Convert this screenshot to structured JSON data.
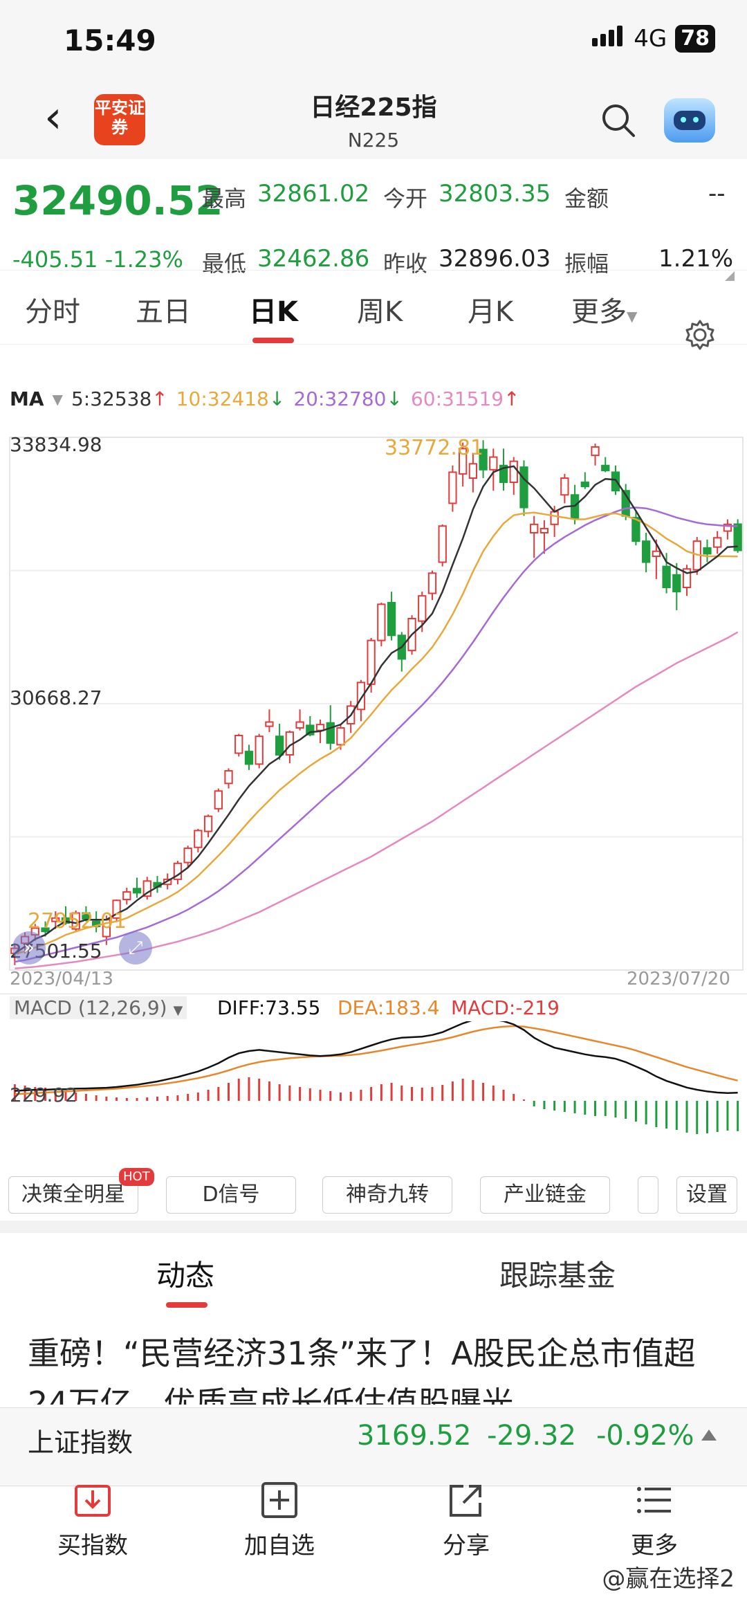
{
  "status_bar": {
    "time": "15:49",
    "network": "4G",
    "battery": "78"
  },
  "header": {
    "title": "日经225指",
    "subtitle": "N225",
    "logo_text": "平安证券"
  },
  "quote": {
    "price": "32490.52",
    "change": "-405.51",
    "change_pct": "-1.23%",
    "high_label": "最高",
    "high": "32861.02",
    "open_label": "今开",
    "open": "32803.35",
    "amount_label": "金额",
    "amount": "--",
    "low_label": "最低",
    "low": "32462.86",
    "prev_close_label": "昨收",
    "prev_close": "32896.03",
    "amplitude_label": "振幅",
    "amplitude": "1.21%"
  },
  "period_tabs": [
    "分时",
    "五日",
    "日K",
    "周K",
    "月K",
    "更多"
  ],
  "active_tab": "日K",
  "ma_legend": {
    "label": "MA",
    "ma5": "5:32538",
    "ma10": "10:32418",
    "ma20": "20:32780",
    "ma60": "60:31519",
    "ma5_dir": "↑",
    "ma10_dir": "↓",
    "ma20_dir": "↓",
    "ma60_dir": "↑"
  },
  "colors": {
    "up": "#e33b3b",
    "down": "#1f9e3f",
    "ma5": "#333333",
    "ma10": "#e8a93a",
    "ma20": "#a66ad6",
    "ma60": "#e58ac0",
    "dea": "#e8872a"
  },
  "chart_labels": {
    "y_top": "33834.98",
    "y_mid": "30668.27",
    "y_bottom": "27501.55",
    "max_marker": "33772.81",
    "min_marker": "27952.01",
    "date_start": "2023/04/13",
    "date_end": "2023/07/20"
  },
  "macd": {
    "label": "MACD (12,26,9)",
    "diff": "DIFF:73.55",
    "dea": "DEA:183.4",
    "macd": "MACD:-219",
    "y_label": "229.92"
  },
  "tool_buttons": [
    "决策全明星",
    "D信号",
    "神奇九转",
    "产业链金",
    "",
    "设置"
  ],
  "hot_badge": "HOT",
  "section_tabs": [
    "动态",
    "跟踪基金"
  ],
  "news_headline": "重磅！“民营经济31条”来了！A股民企总市值超24万亿，优质高成长低估值股曝光",
  "ticker": {
    "name": "上证指数",
    "price": "3169.52",
    "change": "-29.32",
    "change_pct": "-0.92%"
  },
  "bottom_nav": [
    {
      "label": "买指数",
      "icon": "download-icon"
    },
    {
      "label": "加自选",
      "icon": "add-icon"
    },
    {
      "label": "分享",
      "icon": "share-icon"
    },
    {
      "label": "更多",
      "icon": "menu-icon"
    }
  ],
  "watermark": "@赢在选择2",
  "chart_data": {
    "type": "candlestick",
    "x_range": [
      "2023/04/13",
      "2023/07/20"
    ],
    "ylim": [
      27501.55,
      33834.98
    ],
    "candles": [
      [
        27700,
        27820,
        27560,
        27760
      ],
      [
        27820,
        27950,
        27700,
        27900
      ],
      [
        27920,
        28050,
        27850,
        28000
      ],
      [
        28000,
        28080,
        27900,
        27960
      ],
      [
        28080,
        28200,
        27990,
        28120
      ],
      [
        28120,
        28260,
        28040,
        28060
      ],
      [
        27990,
        28210,
        27960,
        28180
      ],
      [
        28180,
        28260,
        28080,
        28110
      ],
      [
        28080,
        28200,
        27950,
        28020
      ],
      [
        27900,
        28150,
        27800,
        28100
      ],
      [
        28120,
        28340,
        28080,
        28330
      ],
      [
        28340,
        28480,
        28280,
        28430
      ],
      [
        28470,
        28600,
        28360,
        28420
      ],
      [
        28380,
        28610,
        28340,
        28560
      ],
      [
        28540,
        28620,
        28420,
        28490
      ],
      [
        28520,
        28650,
        28460,
        28580
      ],
      [
        28580,
        28800,
        28520,
        28770
      ],
      [
        28780,
        28980,
        28720,
        28950
      ],
      [
        28960,
        29180,
        28900,
        29160
      ],
      [
        29150,
        29350,
        29080,
        29330
      ],
      [
        29420,
        29660,
        29380,
        29630
      ],
      [
        29720,
        29900,
        29660,
        29870
      ],
      [
        30080,
        30310,
        30040,
        30290
      ],
      [
        30100,
        30180,
        29880,
        29950
      ],
      [
        29950,
        30310,
        29900,
        30280
      ],
      [
        30400,
        30600,
        30330,
        30450
      ],
      [
        30280,
        30430,
        30000,
        30060
      ],
      [
        30060,
        30350,
        29960,
        30330
      ],
      [
        30380,
        30600,
        30350,
        30450
      ],
      [
        30410,
        30520,
        30280,
        30300
      ],
      [
        30350,
        30480,
        30200,
        30420
      ],
      [
        30440,
        30650,
        30120,
        30200
      ],
      [
        30180,
        30420,
        30120,
        30380
      ],
      [
        30430,
        30700,
        30320,
        30640
      ],
      [
        30600,
        30950,
        30460,
        30920
      ],
      [
        30900,
        31450,
        30800,
        31420
      ],
      [
        31420,
        31870,
        31350,
        31850
      ],
      [
        31870,
        32000,
        31420,
        31480
      ],
      [
        31480,
        31520,
        31050,
        31200
      ],
      [
        31300,
        31720,
        31250,
        31680
      ],
      [
        31650,
        32000,
        31520,
        31950
      ],
      [
        31980,
        32250,
        31900,
        32220
      ],
      [
        32350,
        32800,
        32300,
        32780
      ],
      [
        33050,
        33500,
        32950,
        33420
      ],
      [
        33400,
        33772,
        33250,
        33700
      ],
      [
        33350,
        33650,
        33180,
        33520
      ],
      [
        33690,
        33800,
        33350,
        33450
      ],
      [
        33450,
        33700,
        33200,
        33600
      ],
      [
        33500,
        33700,
        33200,
        33300
      ],
      [
        33300,
        33600,
        33150,
        33550
      ],
      [
        33480,
        33560,
        32900,
        33000
      ],
      [
        32700,
        32900,
        32400,
        32800
      ],
      [
        32700,
        32850,
        32450,
        32750
      ],
      [
        32800,
        33020,
        32650,
        32950
      ],
      [
        33150,
        33400,
        33050,
        33350
      ],
      [
        33150,
        33270,
        32800,
        32870
      ],
      [
        33300,
        33420,
        33220,
        33250
      ],
      [
        33620,
        33760,
        33500,
        33720
      ],
      [
        33500,
        33600,
        33420,
        33440
      ],
      [
        33420,
        33500,
        33150,
        33200
      ],
      [
        33200,
        33280,
        32850,
        32900
      ],
      [
        32880,
        32960,
        32550,
        32600
      ],
      [
        32600,
        32700,
        32230,
        32350
      ],
      [
        32420,
        32620,
        32150,
        32480
      ],
      [
        32300,
        32460,
        31980,
        32050
      ],
      [
        32200,
        32340,
        31780,
        32000
      ],
      [
        32050,
        32320,
        31950,
        32270
      ],
      [
        32260,
        32650,
        32200,
        32600
      ],
      [
        32520,
        32620,
        32350,
        32450
      ],
      [
        32530,
        32720,
        32450,
        32640
      ],
      [
        32720,
        32860,
        32620,
        32800
      ],
      [
        32803,
        32861,
        32462,
        32490
      ]
    ],
    "ma5": [
      27700,
      27780,
      27870,
      27920,
      28010,
      28080,
      28060,
      28100,
      28100,
      28100,
      28170,
      28230,
      28330,
      28420,
      28490,
      28560,
      28630,
      28720,
      28850,
      29010,
      29180,
      29350,
      29530,
      29690,
      29820,
      29950,
      30030,
      30170,
      30240,
      30330,
      30340,
      30380,
      30420,
      30530,
      30730,
      30910,
      31120,
      31270,
      31340,
      31490,
      31600,
      31740,
      32000,
      32320,
      32630,
      32980,
      33250,
      33420,
      33470,
      33490,
      33340,
      33230,
      33090,
      32950,
      33010,
      33020,
      33130,
      33270,
      33340,
      33330,
      33150,
      32960,
      32760,
      32570,
      32350,
      32280,
      32220,
      32240,
      32330,
      32420,
      32530,
      32538
    ],
    "ma10": [
      27700,
      27720,
      27770,
      27810,
      27860,
      27920,
      27960,
      28000,
      28030,
      28060,
      28080,
      28120,
      28180,
      28240,
      28300,
      28360,
      28430,
      28520,
      28620,
      28740,
      28860,
      28990,
      29130,
      29270,
      29400,
      29520,
      29640,
      29740,
      29840,
      29930,
      30010,
      30080,
      30160,
      30260,
      30400,
      30540,
      30690,
      30830,
      30950,
      31080,
      31200,
      31340,
      31520,
      31730,
      31970,
      32240,
      32480,
      32660,
      32810,
      32910,
      32930,
      32940,
      32920,
      32900,
      32880,
      32860,
      32860,
      32890,
      32920,
      32930,
      32900,
      32860,
      32800,
      32720,
      32630,
      32560,
      32480,
      32440,
      32420,
      32420,
      32420,
      32418
    ],
    "ma20": [
      27600,
      27620,
      27650,
      27680,
      27710,
      27740,
      27770,
      27800,
      27830,
      27860,
      27890,
      27930,
      27970,
      28010,
      28060,
      28110,
      28160,
      28220,
      28290,
      28360,
      28440,
      28530,
      28630,
      28730,
      28840,
      28950,
      29060,
      29170,
      29280,
      29390,
      29500,
      29610,
      29710,
      29820,
      29930,
      30050,
      30170,
      30290,
      30410,
      30530,
      30650,
      30780,
      30920,
      31070,
      31230,
      31400,
      31580,
      31760,
      31930,
      32090,
      32240,
      32370,
      32480,
      32570,
      32650,
      32720,
      32790,
      32850,
      32900,
      32950,
      32990,
      33000,
      32990,
      32960,
      32920,
      32880,
      32850,
      32820,
      32800,
      32790,
      32780,
      32780
    ],
    "ma60": [
      27520,
      27530,
      27540,
      27555,
      27570,
      27585,
      27600,
      27620,
      27640,
      27660,
      27680,
      27700,
      27725,
      27750,
      27780,
      27810,
      27840,
      27875,
      27910,
      27950,
      27990,
      28040,
      28090,
      28140,
      28190,
      28250,
      28310,
      28370,
      28430,
      28490,
      28550,
      28610,
      28670,
      28730,
      28790,
      28850,
      28920,
      28990,
      29060,
      29130,
      29200,
      29270,
      29350,
      29430,
      29510,
      29590,
      29670,
      29750,
      29830,
      29910,
      29990,
      30070,
      30150,
      30230,
      30310,
      30390,
      30470,
      30550,
      30630,
      30710,
      30790,
      30870,
      30940,
      31010,
      31080,
      31150,
      31210,
      31270,
      31330,
      31390,
      31450,
      31519
    ],
    "macd_hist": [
      120,
      110,
      100,
      95,
      85,
      70,
      60,
      50,
      40,
      30,
      25,
      20,
      20,
      25,
      30,
      35,
      40,
      50,
      60,
      80,
      100,
      130,
      160,
      170,
      160,
      140,
      120,
      110,
      100,
      90,
      80,
      70,
      60,
      65,
      80,
      100,
      120,
      130,
      110,
      100,
      95,
      100,
      115,
      140,
      160,
      150,
      130,
      110,
      80,
      50,
      10,
      -40,
      -60,
      -70,
      -80,
      -90,
      -100,
      -110,
      -110,
      -120,
      -130,
      -150,
      -170,
      -190,
      -200,
      -210,
      -230,
      -240,
      -235,
      -225,
      -215,
      -219
    ],
    "diff": [
      90,
      95,
      100,
      100,
      105,
      105,
      110,
      112,
      115,
      118,
      125,
      135,
      145,
      160,
      175,
      195,
      215,
      240,
      265,
      300,
      340,
      390,
      430,
      450,
      460,
      450,
      440,
      430,
      420,
      410,
      405,
      410,
      420,
      440,
      470,
      500,
      530,
      555,
      570,
      575,
      580,
      595,
      620,
      660,
      700,
      730,
      740,
      735,
      720,
      690,
      640,
      570,
      520,
      480,
      460,
      440,
      420,
      405,
      395,
      380,
      350,
      310,
      270,
      220,
      180,
      150,
      120,
      100,
      85,
      75,
      70,
      73.55
    ],
    "dea": [
      60,
      65,
      70,
      75,
      80,
      85,
      90,
      95,
      100,
      105,
      110,
      118,
      126,
      135,
      145,
      158,
      172,
      188,
      205,
      225,
      248,
      275,
      305,
      330,
      350,
      365,
      375,
      385,
      392,
      398,
      402,
      405,
      408,
      414,
      424,
      438,
      454,
      472,
      490,
      505,
      520,
      536,
      554,
      575,
      600,
      625,
      645,
      660,
      670,
      675,
      670,
      655,
      640,
      620,
      600,
      580,
      560,
      540,
      520,
      500,
      480,
      455,
      425,
      395,
      365,
      335,
      305,
      280,
      255,
      230,
      205,
      183.4
    ]
  }
}
